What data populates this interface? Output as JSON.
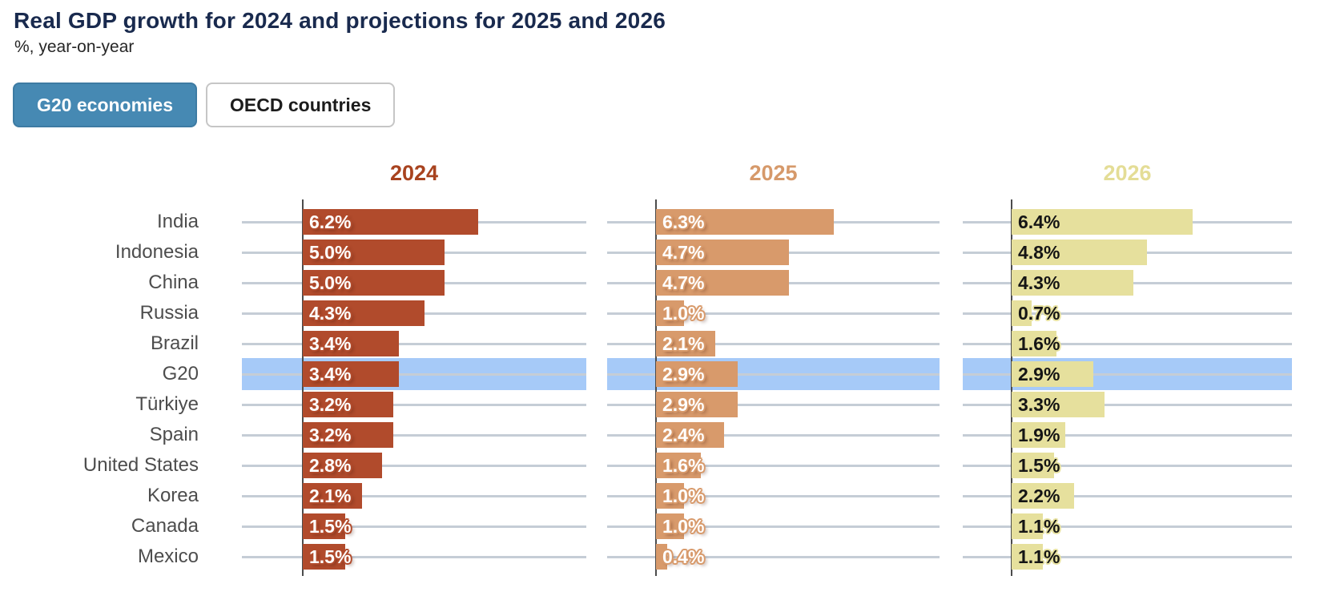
{
  "title": "Real GDP growth for 2024 and projections for 2025 and 2026",
  "subtitle": "%, year-on-year",
  "toggle": {
    "options": [
      {
        "label": "G20 economies",
        "selected": true
      },
      {
        "label": "OECD countries",
        "selected": false
      }
    ]
  },
  "chart_data": {
    "type": "bar",
    "orientation": "horizontal",
    "title": "Real GDP growth for 2024 and projections for 2025 and 2026",
    "subtitle": "%, year-on-year",
    "categories": [
      "India",
      "Indonesia",
      "China",
      "Russia",
      "Brazil",
      "G20",
      "Türkiye",
      "Spain",
      "United States",
      "Korea",
      "Canada",
      "Mexico"
    ],
    "highlighted_category": "G20",
    "highlight_color": "#a6caf8",
    "value_suffix": "%",
    "xlim": [
      -2,
      10
    ],
    "grid": true,
    "legend_position": "column-headers",
    "series": [
      {
        "name": "2024",
        "color": "#b14b2c",
        "header_color": "#a8431f",
        "label_color": "#ffffff",
        "halo_color": "#b14b2c",
        "values": [
          6.2,
          5.0,
          5.0,
          4.3,
          3.4,
          3.4,
          3.2,
          3.2,
          2.8,
          2.1,
          1.5,
          1.5
        ]
      },
      {
        "name": "2025",
        "color": "#d89a6b",
        "header_color": "#d6996a",
        "label_color": "#ffffff",
        "halo_color": "#d89a6b",
        "values": [
          6.3,
          4.7,
          4.7,
          1.0,
          2.1,
          2.9,
          2.9,
          2.4,
          1.6,
          1.0,
          1.0,
          0.4
        ]
      },
      {
        "name": "2026",
        "color": "#e6e09d",
        "header_color": "#e4dd96",
        "label_color": "#151515",
        "halo_color": "#e6e09d",
        "values": [
          6.4,
          4.8,
          4.3,
          0.7,
          1.6,
          2.9,
          3.3,
          1.9,
          1.5,
          2.2,
          1.1,
          1.1
        ]
      }
    ],
    "axis_color": "#4c4c4c",
    "gridline_color": "#c5cdd6"
  }
}
